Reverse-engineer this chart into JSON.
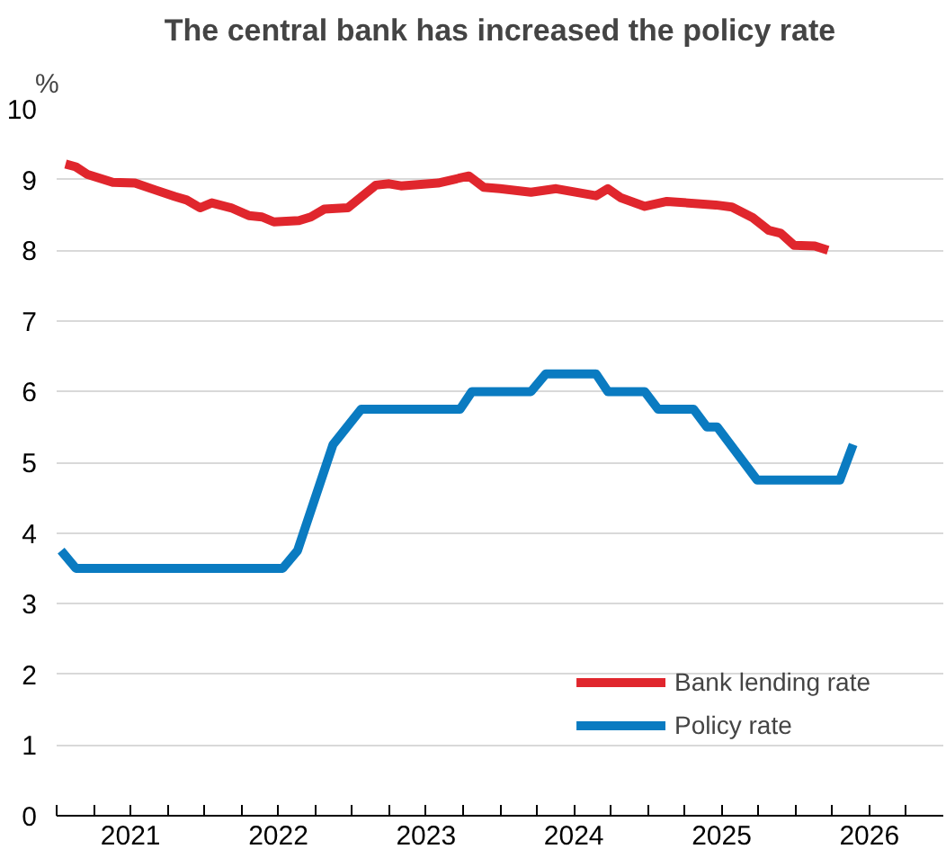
{
  "chart_data": {
    "type": "line",
    "title": "The central bank has increased the policy rate",
    "ylabel": "%",
    "xlim": [
      2021,
      2027
    ],
    "ylim": [
      0,
      10
    ],
    "yticks": [
      0,
      1,
      2,
      3,
      4,
      5,
      6,
      7,
      8,
      9,
      10
    ],
    "xticks": [
      {
        "value": 2021,
        "label": null
      },
      {
        "value": 2021.25,
        "label": null
      },
      {
        "value": 2021.5,
        "label": "2021"
      },
      {
        "value": 2021.75,
        "label": null
      },
      {
        "value": 2022,
        "label": null
      },
      {
        "value": 2022.25,
        "label": null
      },
      {
        "value": 2022.5,
        "label": "2022"
      },
      {
        "value": 2022.75,
        "label": null
      },
      {
        "value": 2023,
        "label": null
      },
      {
        "value": 2023.25,
        "label": null
      },
      {
        "value": 2023.5,
        "label": "2023"
      },
      {
        "value": 2023.75,
        "label": null
      },
      {
        "value": 2024,
        "label": null
      },
      {
        "value": 2024.25,
        "label": null
      },
      {
        "value": 2024.5,
        "label": "2024"
      },
      {
        "value": 2024.75,
        "label": null
      },
      {
        "value": 2025,
        "label": null
      },
      {
        "value": 2025.25,
        "label": null
      },
      {
        "value": 2025.5,
        "label": "2025"
      },
      {
        "value": 2025.75,
        "label": null
      },
      {
        "value": 2026,
        "label": null
      },
      {
        "value": 2026.25,
        "label": null
      },
      {
        "value": 2026.5,
        "label": "2026"
      },
      {
        "value": 2026.75,
        "label": null
      }
    ],
    "grid": "y",
    "legend": "bottom right",
    "line_style": "solid",
    "marker": "none",
    "series": [
      {
        "name": "Bank lending rate",
        "color": "#e0262d",
        "x": [
          2021.06,
          2021.13,
          2021.21,
          2021.38,
          2021.53,
          2021.67,
          2021.8,
          2021.88,
          2021.97,
          2022.05,
          2022.18,
          2022.3,
          2022.39,
          2022.47,
          2022.64,
          2022.72,
          2022.81,
          2022.97,
          2023.16,
          2023.25,
          2023.33,
          2023.58,
          2023.79,
          2023.89,
          2024.0,
          2024.21,
          2024.38,
          2024.65,
          2024.73,
          2024.82,
          2024.98,
          2025.13,
          2025.46,
          2025.57,
          2025.71,
          2025.82,
          2025.9,
          2025.99,
          2026.13,
          2026.22
        ],
        "values": [
          9.22,
          9.18,
          9.07,
          8.96,
          8.95,
          8.85,
          8.76,
          8.71,
          8.6,
          8.67,
          8.6,
          8.49,
          8.47,
          8.4,
          8.42,
          8.47,
          8.58,
          8.6,
          8.92,
          8.94,
          8.91,
          8.95,
          9.05,
          8.89,
          8.87,
          8.82,
          8.87,
          8.77,
          8.87,
          8.74,
          8.62,
          8.69,
          8.64,
          8.61,
          8.46,
          8.28,
          8.24,
          8.07,
          8.06,
          8.0
        ]
      },
      {
        "name": "Policy rate",
        "color": "#0a7bc1",
        "x": [
          2021.03,
          2021.13,
          2022.53,
          2022.63,
          2022.87,
          2023.06,
          2023.73,
          2023.81,
          2024.21,
          2024.31,
          2024.65,
          2024.73,
          2024.98,
          2025.07,
          2025.31,
          2025.4,
          2025.47,
          2025.74,
          2026.3,
          2026.39
        ],
        "values": [
          3.75,
          3.5,
          3.5,
          3.75,
          5.25,
          5.75,
          5.75,
          6.0,
          6.0,
          6.25,
          6.25,
          6.0,
          6.0,
          5.75,
          5.75,
          5.5,
          5.5,
          4.75,
          4.75,
          5.25
        ]
      }
    ]
  }
}
